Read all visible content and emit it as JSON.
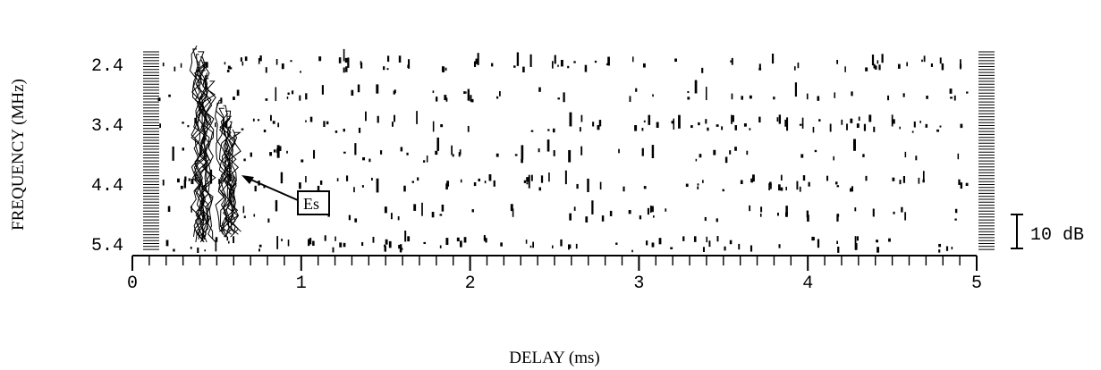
{
  "chart_data": {
    "type": "scatter",
    "title": "",
    "xlabel": "DELAY (ms)",
    "ylabel": "FREQUENCY (MHz)",
    "xlim": [
      0,
      5
    ],
    "ylim": [
      5.4,
      2.4
    ],
    "x_ticks": [
      "0",
      "1",
      "2",
      "3",
      "4",
      "5"
    ],
    "y_ticks": [
      "2.4",
      "3.4",
      "4.4",
      "5.4"
    ],
    "x_minor_ticks_per_unit": 10,
    "scale_bar_label": "10 dB",
    "annotation": {
      "text": "Es",
      "arrow_to": {
        "x": 0.6,
        "y": 4.0
      }
    },
    "echo_traces": [
      {
        "name": "",
        "x": 0.42,
        "y_top": 2.1,
        "y_bottom": 5.4
      },
      {
        "name": "",
        "x": 0.57,
        "y_top": 3.0,
        "y_bottom": 5.3
      }
    ],
    "noise_rows_y": [
      2.4,
      2.9,
      3.4,
      3.9,
      4.4,
      4.9,
      5.4
    ]
  }
}
